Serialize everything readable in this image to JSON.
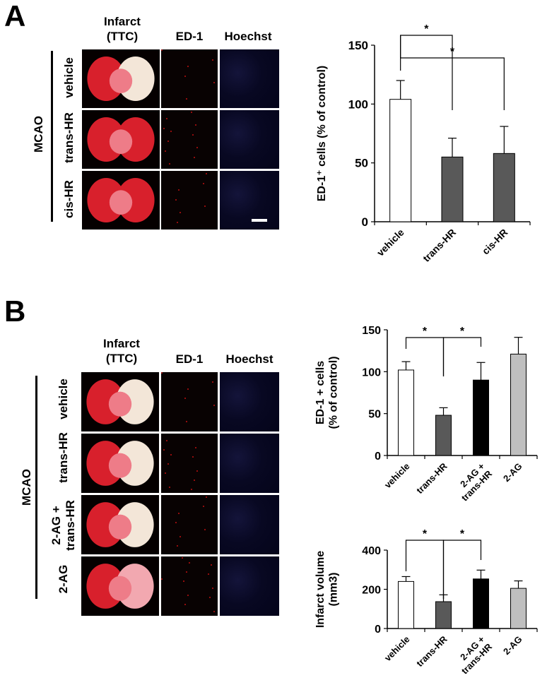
{
  "panel_a": {
    "letter": "A",
    "col_headers": {
      "infarct": "Infarct\n(TTC)",
      "ed1": "ED-1",
      "hoechst": "Hoechst"
    },
    "group_label": "MCAO",
    "rows": [
      "vehicle",
      "trans-HR",
      "cis-HR"
    ]
  },
  "panel_b": {
    "letter": "B",
    "col_headers": {
      "infarct": "Infarct\n(TTC)",
      "ed1": "ED-1",
      "hoechst": "Hoechst"
    },
    "group_label": "MCAO",
    "rows": [
      "vehicle",
      "trans-HR",
      "2-AG +\ntrans-HR",
      "2-AG"
    ]
  },
  "chart_data": [
    {
      "id": "chartA",
      "type": "bar",
      "categories": [
        "vehicle",
        "trans-HR",
        "cis-HR"
      ],
      "values": [
        104,
        55,
        58
      ],
      "errors": [
        16,
        16,
        23
      ],
      "colors": [
        "#ffffff",
        "#595959",
        "#595959"
      ],
      "ylabel": "ED-1⁺ cells (% of control)",
      "ylim": [
        0,
        150
      ],
      "yticks": [
        0,
        50,
        100,
        150
      ],
      "significance": [
        {
          "from": 0,
          "to": 1,
          "label": "*"
        },
        {
          "from": 0,
          "to": 2,
          "label": "*"
        }
      ],
      "grid": false
    },
    {
      "id": "chartB1",
      "type": "bar",
      "categories": [
        "vehicle",
        "trans-HR",
        "2-AG +\ntrans-HR",
        "2-AG"
      ],
      "values": [
        102,
        48,
        90,
        121
      ],
      "errors": [
        10,
        9,
        21,
        20
      ],
      "colors": [
        "#ffffff",
        "#595959",
        "#000000",
        "#bfbfbf"
      ],
      "ylabel": "ED-1 + cells\n(% of control)",
      "ylim": [
        0,
        150
      ],
      "yticks": [
        0,
        50,
        100,
        150
      ],
      "significance": [
        {
          "from": 0,
          "to": 1,
          "label": "*"
        },
        {
          "from": 1,
          "to": 2,
          "label": "*"
        }
      ],
      "grid": false
    },
    {
      "id": "chartB2",
      "type": "bar",
      "categories": [
        "vehicle",
        "trans-HR",
        "2-AG +\ntrans-HR",
        "2-AG"
      ],
      "values": [
        240,
        137,
        253,
        205
      ],
      "errors": [
        25,
        35,
        45,
        38
      ],
      "colors": [
        "#ffffff",
        "#595959",
        "#000000",
        "#bfbfbf"
      ],
      "ylabel": "Infarct volume\n(mm3)",
      "ylim": [
        0,
        400
      ],
      "yticks": [
        0,
        200,
        400
      ],
      "significance": [
        {
          "from": 0,
          "to": 1,
          "label": "*"
        },
        {
          "from": 1,
          "to": 2,
          "label": "*"
        }
      ],
      "grid": false
    }
  ]
}
